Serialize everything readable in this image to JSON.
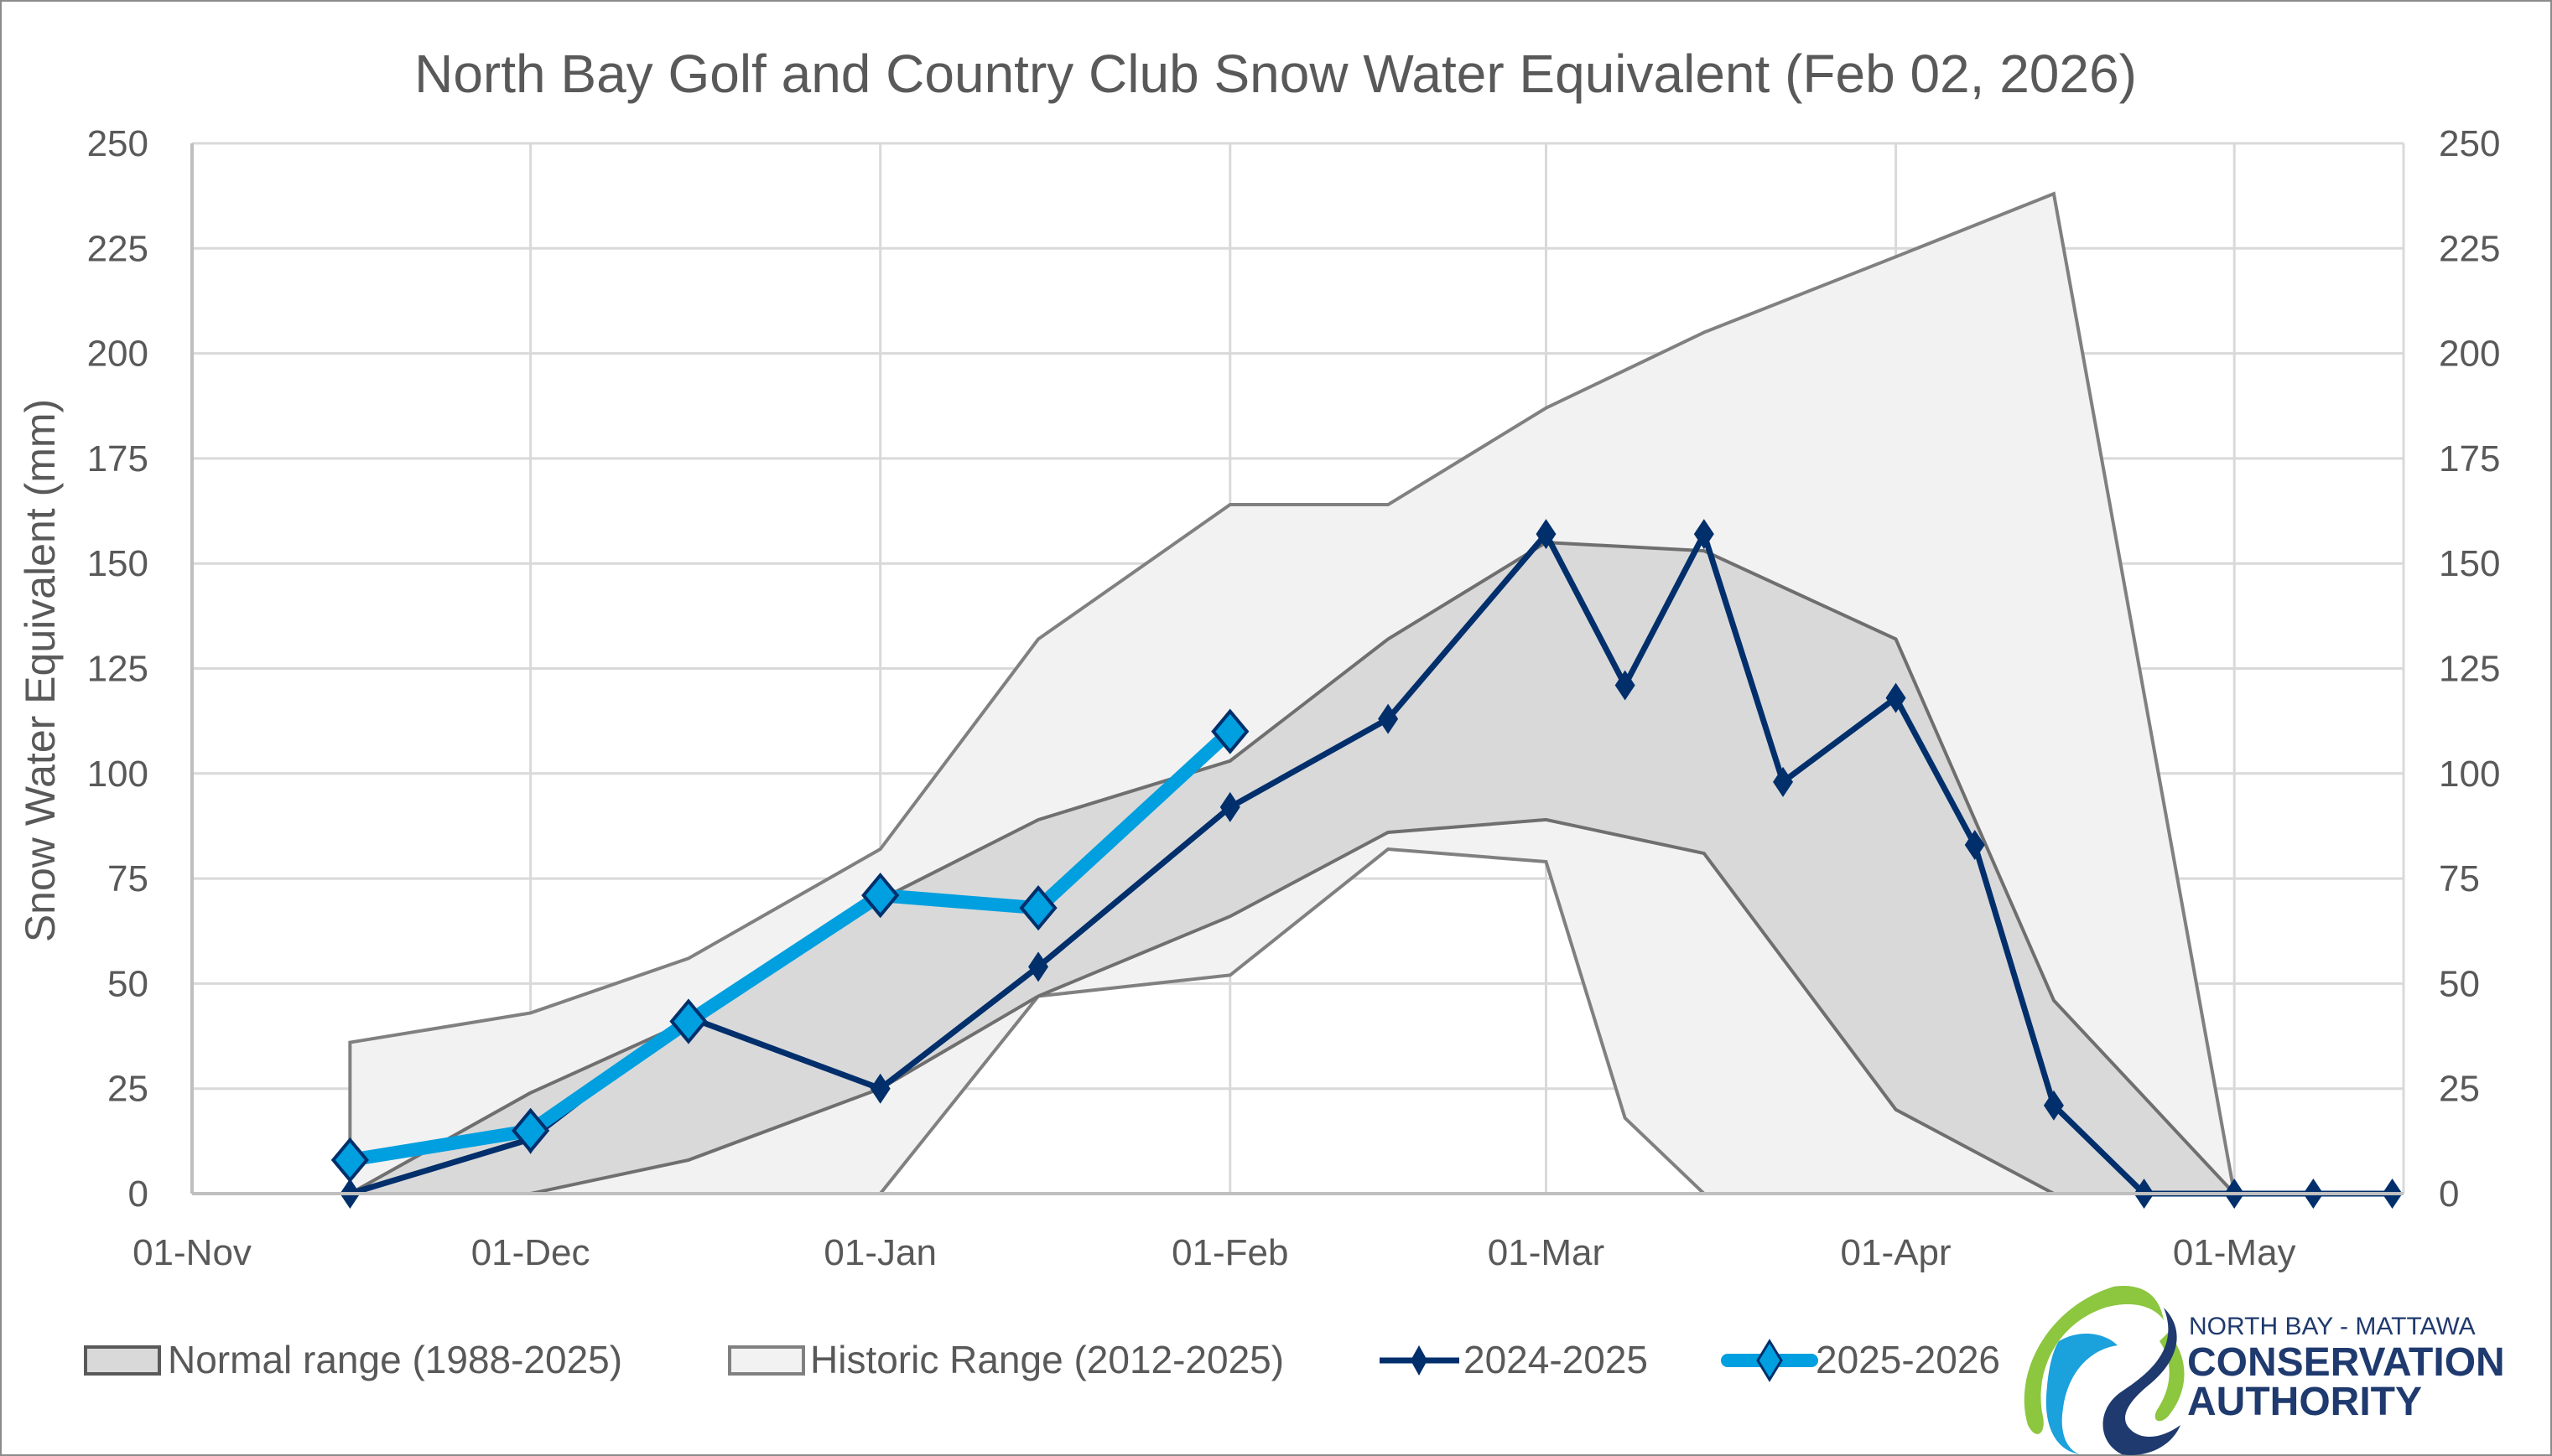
{
  "chart_data": {
    "type": "area",
    "title": "North Bay Golf and Country Club Snow Water Equivalent (Feb 02, 2026)",
    "ylabel": "Snow Water Equivalent (mm)",
    "xlabel": "",
    "ylim": [
      0,
      250
    ],
    "yticks": [
      0,
      25,
      50,
      75,
      100,
      125,
      150,
      175,
      200,
      225,
      250
    ],
    "secondary_yaxis": true,
    "grid": true,
    "x_axis": {
      "start": "01-Nov",
      "end": "16-May",
      "ticks": [
        "01-Nov",
        "01-Dec",
        "01-Jan",
        "01-Feb",
        "01-Mar",
        "01-Apr",
        "01-May"
      ],
      "tick_days": [
        0,
        30,
        61,
        92,
        120,
        151,
        181
      ],
      "max_day": 196
    },
    "legend_position": "bottom",
    "series": [
      {
        "name": "Historic Range (2012-2025)",
        "kind": "band",
        "fill": "#f2f2f2",
        "stroke": "#808080",
        "x": [
          "15-Nov",
          "01-Dec",
          "15-Dec",
          "01-Jan",
          "15-Jan",
          "01-Feb",
          "15-Feb",
          "01-Mar",
          "08-Mar",
          "15-Mar",
          "01-Apr",
          "15-Apr",
          "01-May"
        ],
        "x_days": [
          14,
          30,
          44,
          61,
          75,
          92,
          106,
          120,
          127,
          134,
          151,
          165,
          181
        ],
        "upper": [
          36,
          43,
          56,
          82,
          132,
          164,
          164,
          187,
          196,
          205,
          223,
          238,
          0
        ],
        "lower": [
          0,
          0,
          0,
          0,
          47,
          52,
          82,
          79,
          18,
          0,
          0,
          0,
          0
        ]
      },
      {
        "name": "Normal range (1988-2025)",
        "kind": "band",
        "fill": "#d9d9d9",
        "stroke": "#6f6f6f",
        "x": [
          "15-Nov",
          "01-Dec",
          "15-Dec",
          "01-Jan",
          "15-Jan",
          "01-Feb",
          "15-Feb",
          "01-Mar",
          "15-Mar",
          "01-Apr",
          "15-Apr",
          "01-May"
        ],
        "x_days": [
          14,
          30,
          44,
          61,
          75,
          92,
          106,
          120,
          134,
          151,
          165,
          181
        ],
        "upper": [
          0,
          24,
          41,
          70,
          89,
          103,
          132,
          155,
          153,
          132,
          46,
          0
        ],
        "lower": [
          0,
          0,
          8,
          25,
          47,
          66,
          86,
          89,
          81,
          20,
          0,
          0
        ]
      },
      {
        "name": "2024-2025",
        "kind": "line",
        "color": "#002f6c",
        "x": [
          "15-Nov",
          "01-Dec",
          "15-Dec",
          "01-Jan",
          "15-Jan",
          "01-Feb",
          "15-Feb",
          "01-Mar",
          "08-Mar",
          "15-Mar",
          "22-Mar",
          "01-Apr",
          "08-Apr",
          "15-Apr",
          "23-Apr",
          "01-May",
          "08-May",
          "15-May"
        ],
        "x_days": [
          14,
          30,
          44,
          61,
          75,
          92,
          106,
          120,
          127,
          134,
          141,
          151,
          158,
          165,
          173,
          181,
          188,
          195
        ],
        "values": [
          0,
          13,
          42,
          25,
          54,
          92,
          113,
          157,
          121,
          157,
          98,
          118,
          83,
          21,
          0,
          0,
          0,
          0
        ]
      },
      {
        "name": "2025-2026",
        "kind": "line",
        "color": "#009fdf",
        "marker_stroke": "#002f6c",
        "x": [
          "15-Nov",
          "01-Dec",
          "15-Dec",
          "01-Jan",
          "15-Jan",
          "01-Feb"
        ],
        "x_days": [
          14,
          30,
          44,
          61,
          75,
          92
        ],
        "values": [
          8,
          15,
          41,
          71,
          68,
          110
        ]
      }
    ]
  },
  "legend": {
    "items": [
      {
        "label": "Normal range (1988-2025)"
      },
      {
        "label": "Historic Range (2012-2025)"
      },
      {
        "label": "2024-2025"
      },
      {
        "label": "2025-2026"
      }
    ]
  },
  "logo": {
    "line1": "NORTH BAY - MATTAWA",
    "line2": "CONSERVATION",
    "line3": "AUTHORITY",
    "colors": {
      "green": "#8dc63f",
      "light_blue": "#1ba1db",
      "navy": "#1f3a6e"
    }
  },
  "colors": {
    "text": "#595959",
    "grid": "#d9d9d9",
    "axis": "#bfbfbf"
  }
}
